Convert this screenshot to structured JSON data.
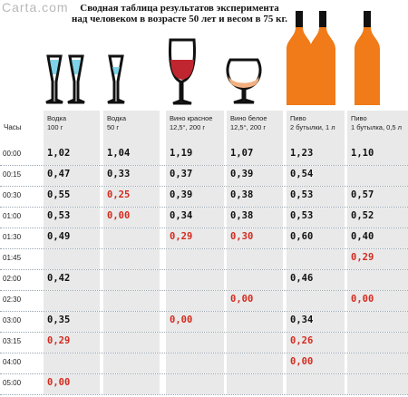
{
  "watermark": "Carta.com",
  "title": {
    "line1": "Сводная таблица результатов эксперимента",
    "line2": "над человеком в возрасте 50 лет и весом в 75 кг."
  },
  "colors": {
    "zero_value": "#d42a1e",
    "beer_bottle": "#f07b18",
    "red_wine": "#c0262f",
    "cognac": "#f2b080",
    "vodka": "#7fd3e8"
  },
  "table": {
    "time_header": "Часы",
    "columns": [
      {
        "name_line1": "Водка",
        "name_line2": "100 г"
      },
      {
        "name_line1": "Водка",
        "name_line2": "50 г"
      },
      {
        "name_line1": "Вино красное",
        "name_line2": "12,5°, 200 г"
      },
      {
        "name_line1": "Вино белое",
        "name_line2": "12,5°, 200 г"
      },
      {
        "name_line1": "Пиво",
        "name_line2": "2 бутылки, 1 л"
      },
      {
        "name_line1": "Пиво",
        "name_line2": "1 бутылка, 0,5 л"
      }
    ],
    "rows": [
      {
        "time": "00:00",
        "cells": [
          "1,02",
          "1,04",
          "1,19",
          "1,07",
          "1,23",
          "1,10"
        ]
      },
      {
        "time": "00:15",
        "cells": [
          "0,47",
          "0,33",
          "0,37",
          "0,39",
          "0,54",
          ""
        ]
      },
      {
        "time": "00:30",
        "cells": [
          "0,55",
          "0,25",
          "0,39",
          "0,38",
          "0,53",
          "0,57"
        ]
      },
      {
        "time": "01:00",
        "cells": [
          "0,53",
          "0,00",
          "0,34",
          "0,38",
          "0,53",
          "0,52"
        ]
      },
      {
        "time": "01:30",
        "cells": [
          "0,49",
          "",
          "0,29",
          "0,30",
          "0,60",
          "0,40"
        ]
      },
      {
        "time": "01:45",
        "cells": [
          "",
          "",
          "",
          "",
          "",
          "0,29"
        ]
      },
      {
        "time": "02:00",
        "cells": [
          "0,42",
          "",
          "",
          "",
          "0,46",
          ""
        ]
      },
      {
        "time": "02:30",
        "cells": [
          "",
          "",
          "",
          "0,00",
          "",
          "0,00"
        ]
      },
      {
        "time": "03:00",
        "cells": [
          "0,35",
          "",
          "0,00",
          "",
          "0,34",
          ""
        ]
      },
      {
        "time": "03:15",
        "cells": [
          "0,29",
          "",
          "",
          "",
          "0,26",
          ""
        ]
      },
      {
        "time": "04:00",
        "cells": [
          "",
          "",
          "",
          "",
          "0,00",
          ""
        ]
      },
      {
        "time": "05:00",
        "cells": [
          "0,00",
          "",
          "",
          "",
          "",
          ""
        ]
      }
    ],
    "red_cells": [
      [
        2,
        1
      ],
      [
        3,
        1
      ],
      [
        4,
        2
      ],
      [
        4,
        3
      ],
      [
        5,
        5
      ],
      [
        7,
        3
      ],
      [
        7,
        5
      ],
      [
        8,
        2
      ],
      [
        9,
        0
      ],
      [
        9,
        4
      ],
      [
        10,
        4
      ],
      [
        11,
        0
      ]
    ]
  }
}
